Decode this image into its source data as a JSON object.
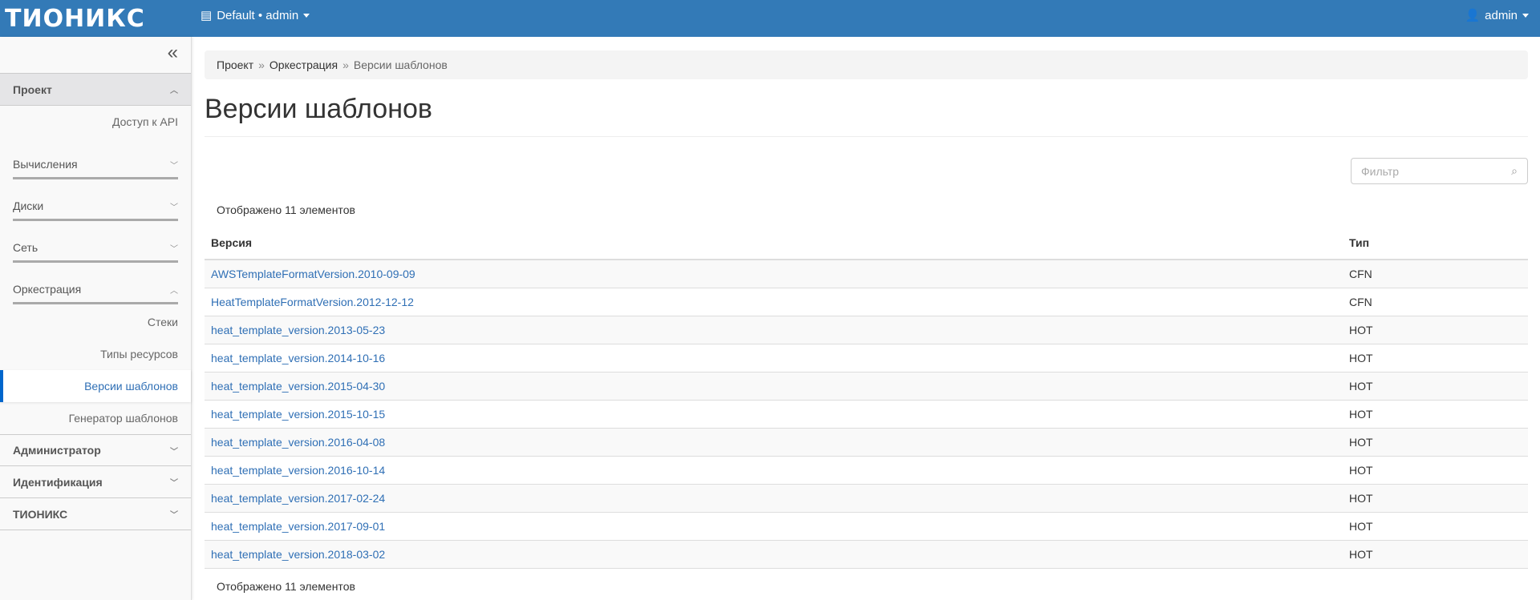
{
  "topbar": {
    "logo": "ТИОНИКС",
    "project_selector": "Default • admin",
    "user_menu": "admin"
  },
  "sidebar": {
    "collapse_icon": "«",
    "sections": [
      {
        "label": "Проект",
        "items": [
          "Доступ к API"
        ],
        "groups": [
          {
            "label": "Вычисления"
          },
          {
            "label": "Диски"
          },
          {
            "label": "Сеть"
          },
          {
            "label": "Оркестрация",
            "items": [
              "Стеки",
              "Типы ресурсов",
              "Версии шаблонов",
              "Генератор шаблонов"
            ],
            "active": "Версии шаблонов"
          }
        ]
      },
      {
        "label": "Администратор"
      },
      {
        "label": "Идентификация"
      },
      {
        "label": "ТИОНИКС"
      }
    ]
  },
  "breadcrumb": [
    "Проект",
    "Оркестрация",
    "Версии шаблонов"
  ],
  "page_title": "Версии шаблонов",
  "filter": {
    "placeholder": "Фильтр"
  },
  "count_text": "Отображено 11 элементов",
  "table": {
    "columns": [
      "Версия",
      "Тип"
    ],
    "rows": [
      [
        "AWSTemplateFormatVersion.2010-09-09",
        "CFN"
      ],
      [
        "HeatTemplateFormatVersion.2012-12-12",
        "CFN"
      ],
      [
        "heat_template_version.2013-05-23",
        "HOT"
      ],
      [
        "heat_template_version.2014-10-16",
        "HOT"
      ],
      [
        "heat_template_version.2015-04-30",
        "HOT"
      ],
      [
        "heat_template_version.2015-10-15",
        "HOT"
      ],
      [
        "heat_template_version.2016-04-08",
        "HOT"
      ],
      [
        "heat_template_version.2016-10-14",
        "HOT"
      ],
      [
        "heat_template_version.2017-02-24",
        "HOT"
      ],
      [
        "heat_template_version.2017-09-01",
        "HOT"
      ],
      [
        "heat_template_version.2018-03-02",
        "HOT"
      ]
    ]
  },
  "colors": {
    "topbar": "#337ab7",
    "link": "#2f6fb5",
    "active_marker": "#0066cc"
  }
}
